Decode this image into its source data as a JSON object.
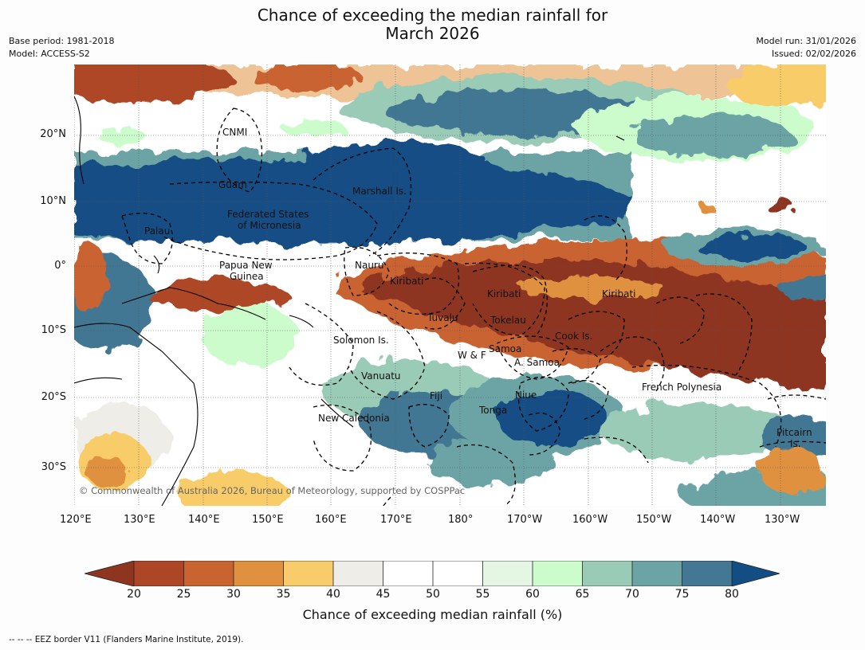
{
  "header": {
    "title_line1": "Chance of exceeding the median rainfall for",
    "title_line2": "March 2026",
    "base_period": "Base period: 1981-2018",
    "model": "Model: ACCESS-S2",
    "model_run": "Model run: 31/01/2026",
    "issued": "Issued: 02/02/2026"
  },
  "map": {
    "lat_ticks": [
      "20°N",
      "10°N",
      "0°",
      "10°S",
      "20°S",
      "30°S"
    ],
    "lon_ticks": [
      "120°E",
      "130°E",
      "140°E",
      "150°E",
      "160°E",
      "170°E",
      "180°",
      "170°W",
      "160°W",
      "150°W",
      "140°W",
      "130°W"
    ],
    "region_labels": {
      "cnmi": "CNMI",
      "guam": "Guam",
      "marshall": "Marshall Is.",
      "fsm1": "Federated States",
      "fsm2": "of Micronesia",
      "palau": "Palau",
      "png1": "Papua New",
      "png2": "Guinea",
      "nauru": "Nauru",
      "kiribati_w": "Kiribati",
      "kiribati_c": "Kiribati",
      "kiribati_e": "Kiribati",
      "tuvalu": "Tuvalu",
      "tokelau": "Tokelau",
      "cook": "Cook Is.",
      "solomon": "Solomon Is.",
      "wf": "W & F",
      "samoa": "Samoa",
      "asamoa": "A. Samoa",
      "vanuatu": "Vanuatu",
      "fiji": "Fiji",
      "niue": "Niue",
      "tonga": "Tonga",
      "newcal": "New Caledonia",
      "frpoly": "French Polynesia",
      "pitcairn1": "Pitcairn",
      "pitcairn2": "Is."
    },
    "copyright": "© Commonwealth of Australia 2026, Bureau of Meteorology, supported by COSPPac"
  },
  "colorbar": {
    "ticks": [
      "20",
      "25",
      "30",
      "35",
      "40",
      "45",
      "50",
      "55",
      "60",
      "65",
      "70",
      "75",
      "80"
    ],
    "colors": {
      "lt20": "#8e3520",
      "c20_25": "#ad4626",
      "c25_30": "#c96431",
      "c30_35": "#e0913f",
      "c35_40": "#f9cc6b",
      "c40_45": "#efede8",
      "c45_50": "#ffffff",
      "c50_55": "#ffffff",
      "c55_60": "#e5f6e5",
      "c60_65": "#ccfccc",
      "c65_70": "#9acbb6",
      "c70_75": "#6ca4a6",
      "c75_80": "#437793",
      "gt80": "#124e84"
    },
    "title": "Chance of exceeding median rainfall (%)"
  },
  "footnote": "-- -- -- EEZ border V11 (Flanders Marine Institute, 2019)."
}
